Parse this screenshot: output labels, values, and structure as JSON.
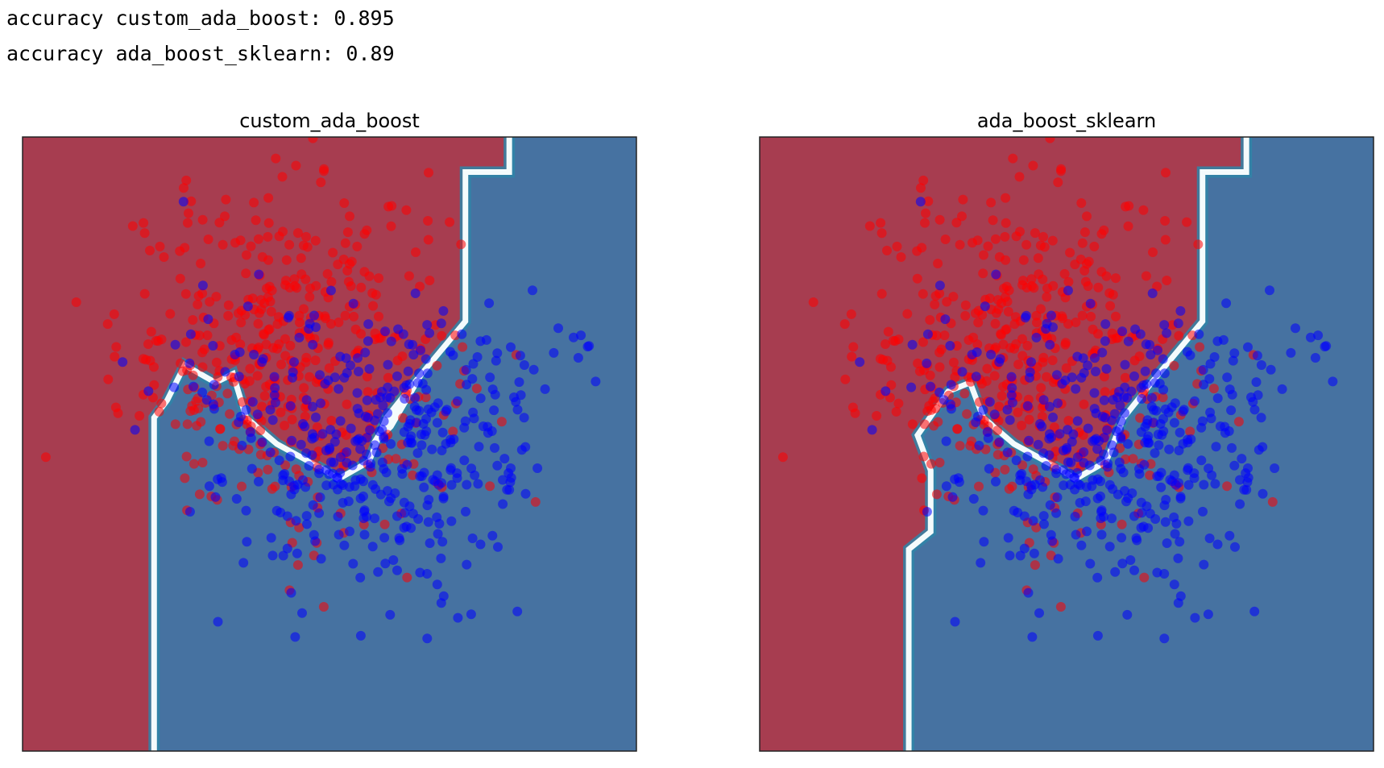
{
  "output": {
    "lines": [
      "accuracy custom_ada_boost: 0.895",
      "accuracy ada_boost_sklearn: 0.89"
    ]
  },
  "colors": {
    "region_class_0": "#a73d50",
    "region_class_1": "#4672a1",
    "point_class_0": "#ff0000",
    "point_class_1": "#0000ff",
    "boundary_light": "#f4fbfc",
    "boundary_dark": "#2f85a8",
    "axes_frame": "#222222"
  },
  "chart_data": [
    {
      "type": "scatter",
      "title": "custom_ada_boost",
      "xlabel": "",
      "ylabel": "",
      "xlim": [
        -3.0,
        4.0
      ],
      "ylim": [
        -3.0,
        4.0
      ],
      "ticks_visible": false,
      "background": "decision regions (class 0 red, class 1 blue)",
      "decision_boundary": [
        [
          -1.5,
          -3.0
        ],
        [
          -1.5,
          0.8
        ],
        [
          -1.35,
          1.0
        ],
        [
          -1.15,
          1.4
        ],
        [
          -0.8,
          1.2
        ],
        [
          -0.6,
          1.3
        ],
        [
          -0.45,
          0.8
        ],
        [
          -0.1,
          0.5
        ],
        [
          0.45,
          0.2
        ],
        [
          0.6,
          0.1
        ],
        [
          0.95,
          0.3
        ],
        [
          1.15,
          0.8
        ],
        [
          1.55,
          1.3
        ],
        [
          1.2,
          0.7
        ],
        [
          1.0,
          0.5
        ],
        [
          1.25,
          0.9
        ],
        [
          1.55,
          1.3
        ],
        [
          2.05,
          1.9
        ],
        [
          2.05,
          3.6
        ],
        [
          2.55,
          3.6
        ],
        [
          2.55,
          4.0
        ]
      ],
      "series": [
        {
          "class": 0,
          "color": "#ff0000",
          "center": [
            0.0,
            1.55
          ],
          "spread": [
            0.95,
            0.95
          ],
          "count": 420
        },
        {
          "class": 1,
          "color": "#0000ff",
          "center": [
            1.05,
            0.35
          ],
          "spread": [
            1.0,
            0.8
          ],
          "count": 420
        }
      ]
    },
    {
      "type": "scatter",
      "title": "ada_boost_sklearn",
      "xlabel": "",
      "ylabel": "",
      "xlim": [
        -3.0,
        4.0
      ],
      "ylim": [
        -3.0,
        4.0
      ],
      "ticks_visible": false,
      "background": "decision regions (class 0 red, class 1 blue)",
      "decision_boundary": [
        [
          -1.3,
          -3.0
        ],
        [
          -1.3,
          -0.7
        ],
        [
          -1.05,
          -0.5
        ],
        [
          -1.05,
          0.2
        ],
        [
          -1.2,
          0.6
        ],
        [
          -0.85,
          1.1
        ],
        [
          -0.6,
          1.2
        ],
        [
          -0.45,
          0.8
        ],
        [
          -0.1,
          0.5
        ],
        [
          0.45,
          0.2
        ],
        [
          0.6,
          0.1
        ],
        [
          0.95,
          0.3
        ],
        [
          1.15,
          0.8
        ],
        [
          1.55,
          1.3
        ],
        [
          2.05,
          1.9
        ],
        [
          2.05,
          3.6
        ],
        [
          2.55,
          3.6
        ],
        [
          2.55,
          4.0
        ]
      ],
      "series": [
        {
          "class": 0,
          "color": "#ff0000",
          "center": [
            0.0,
            1.55
          ],
          "spread": [
            0.95,
            0.95
          ],
          "count": 420
        },
        {
          "class": 1,
          "color": "#0000ff",
          "center": [
            1.05,
            0.35
          ],
          "spread": [
            1.0,
            0.8
          ],
          "count": 420
        }
      ]
    }
  ]
}
